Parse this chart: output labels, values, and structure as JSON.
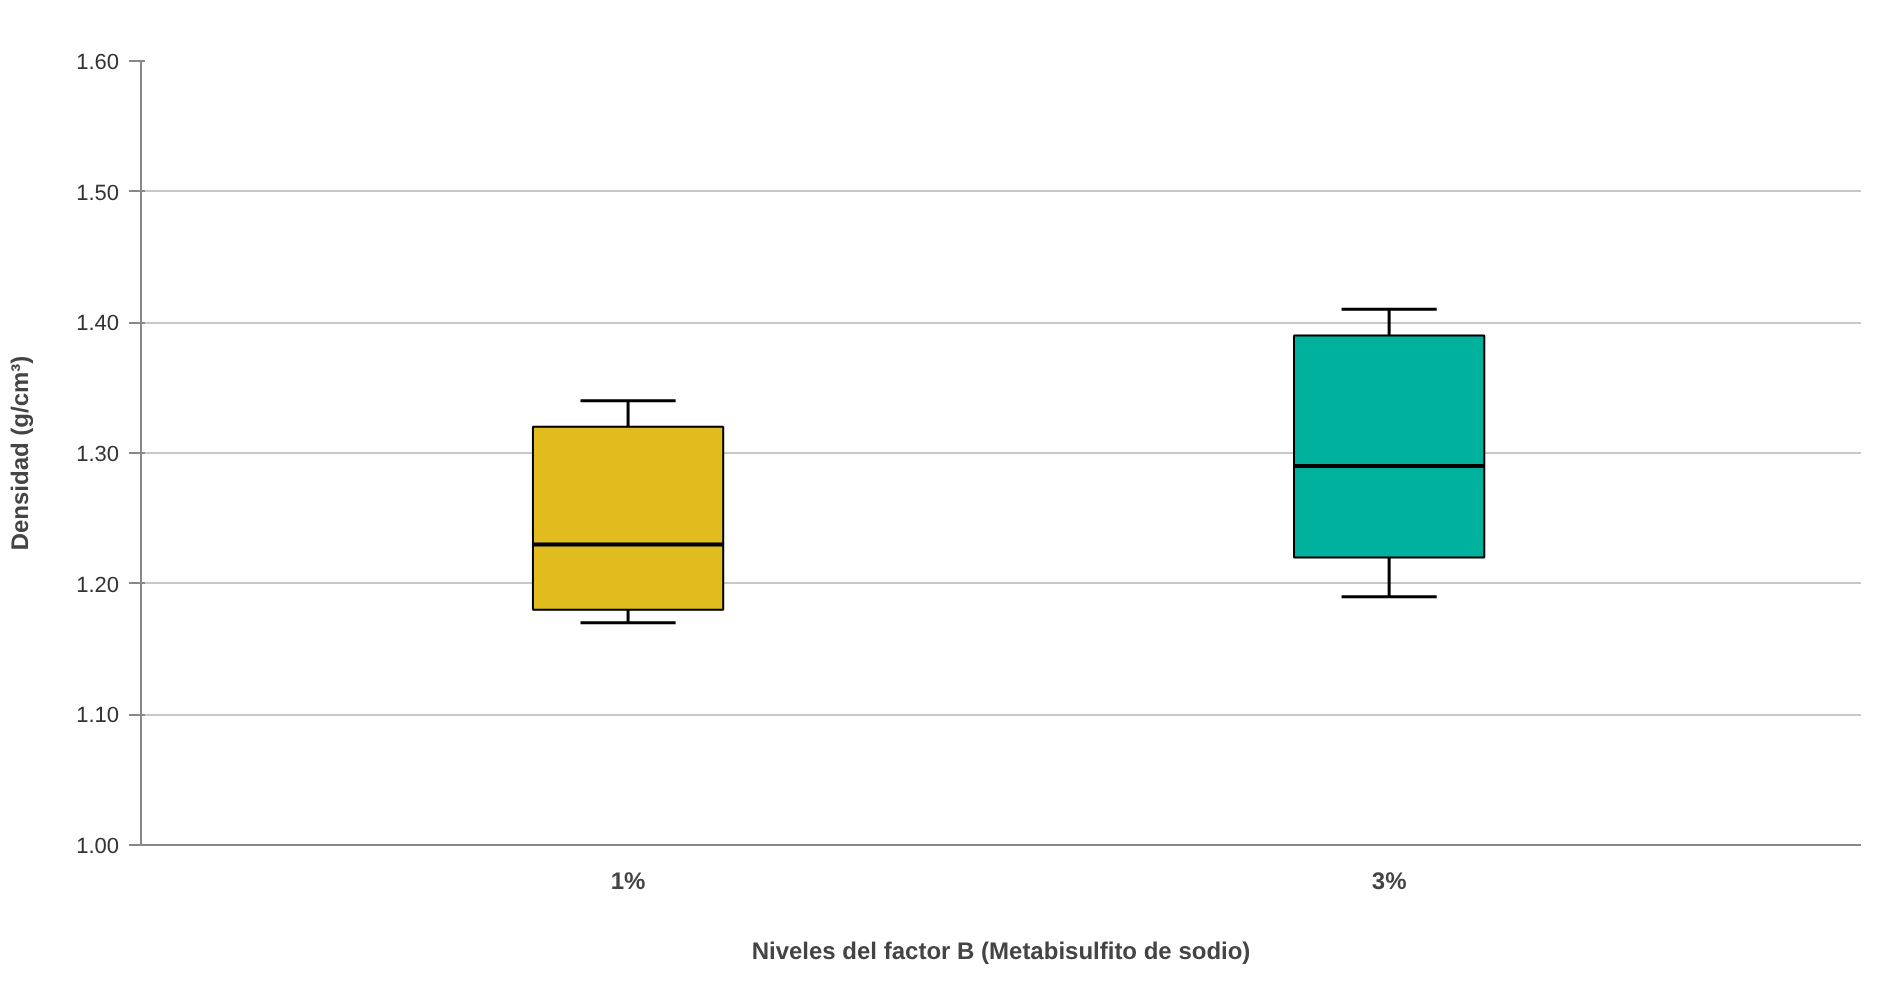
{
  "chart_data": {
    "type": "box",
    "xlabel": "Niveles del factor B (Metabisulfito de sodio)",
    "ylabel": "Densidad (g/cm³)",
    "categories": [
      "1%",
      "3%"
    ],
    "colors": [
      "#e0bc1e",
      "#00b19e"
    ],
    "boxes": [
      {
        "low": 1.17,
        "q1": 1.18,
        "median": 1.23,
        "q3": 1.32,
        "high": 1.34
      },
      {
        "low": 1.19,
        "q1": 1.22,
        "median": 1.29,
        "q3": 1.39,
        "high": 1.41
      }
    ],
    "ylim": [
      1.0,
      1.6
    ],
    "yticks": [
      {
        "value": 1.0,
        "label": "1.00"
      },
      {
        "value": 1.1,
        "label": "1.10"
      },
      {
        "value": 1.2,
        "label": "1.20"
      },
      {
        "value": 1.3,
        "label": "1.30"
      },
      {
        "value": 1.4,
        "label": "1.40"
      },
      {
        "value": 1.5,
        "label": "1.50"
      },
      {
        "value": 1.6,
        "label": "1.60"
      }
    ],
    "grid": "y"
  }
}
